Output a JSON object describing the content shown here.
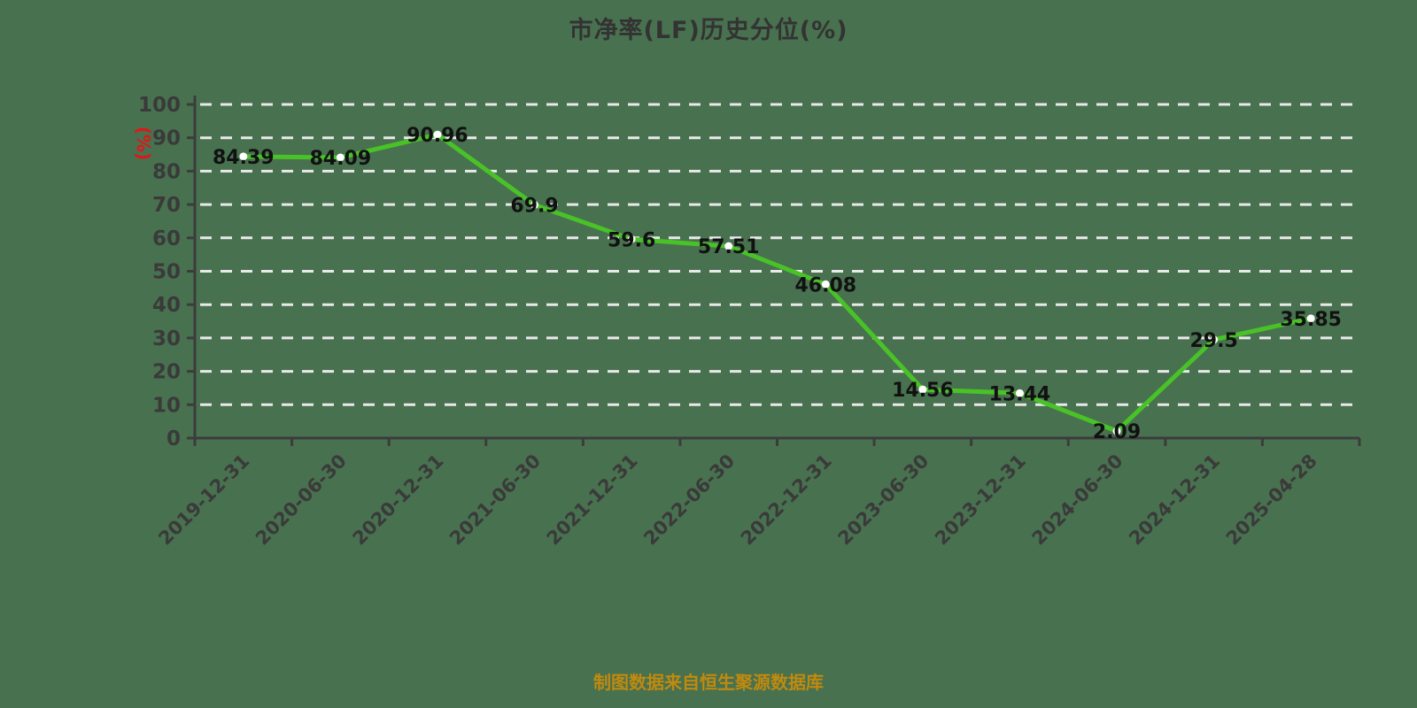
{
  "title": "市净率(LF)历史分位(%)",
  "caption": "制图数据来自恒生聚源数据库",
  "chart_data": {
    "type": "line",
    "title": "市净率(LF)历史分位(%)",
    "xlabel": "",
    "ylabel": "(%)",
    "categories": [
      "2019-12-31",
      "2020-06-30",
      "2020-12-31",
      "2021-06-30",
      "2021-12-31",
      "2022-06-30",
      "2022-12-31",
      "2023-06-30",
      "2023-12-31",
      "2024-06-30",
      "2024-12-31",
      "2025-04-28"
    ],
    "values": [
      84.39,
      84.09,
      90.96,
      69.9,
      59.6,
      57.51,
      46.08,
      14.56,
      13.44,
      2.09,
      29.5,
      35.85
    ],
    "value_labels": [
      "84.39",
      "84.09",
      "90.96",
      "69.9",
      "59.6",
      "57.51",
      "46.08",
      "14.56",
      "13.44",
      "2.09",
      "29.5",
      "35.85"
    ],
    "ylim": [
      0,
      100
    ],
    "yticks": [
      0,
      10,
      20,
      30,
      40,
      50,
      60,
      70,
      80,
      90,
      100
    ],
    "grid": "horizontal-dashed",
    "legend": "none",
    "colors": {
      "background": "#48714f",
      "line": "#49c228",
      "marker": "#ffffff",
      "grid": "#e9e9e9",
      "axis": "#3c3c3c",
      "tick_label": "#3a3a3a",
      "data_label": "#111111",
      "title": "#333333",
      "ylabel_unit": "#e21616",
      "caption": "#c08a0e"
    }
  }
}
